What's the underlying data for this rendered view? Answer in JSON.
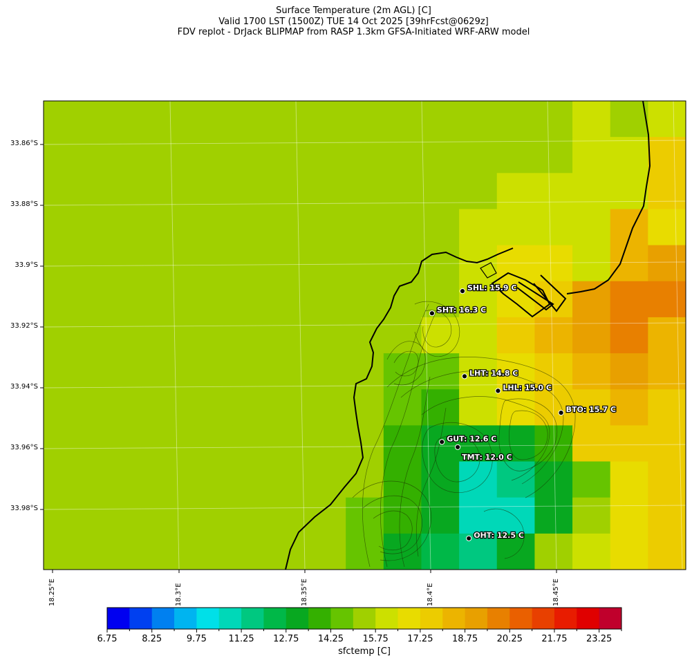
{
  "title": {
    "line1": "Surface Temperature (2m AGL) [C]",
    "line2": "Valid 1700 LST (1500Z) TUE 14 Oct 2025 [39hrFcst@0629z]",
    "line3": "FDV replot - DrJack BLIPMAP from RASP 1.3km GFSA-Initiated WRF-ARW model"
  },
  "axes": {
    "lat_ticks": [
      "33.86°S",
      "33.88°S",
      "33.9°S",
      "33.92°S",
      "33.94°S",
      "33.96°S",
      "33.98°S"
    ],
    "lon_ticks": [
      "18.25°E",
      "18.3°E",
      "18.35°E",
      "18.4°E",
      "18.45°E"
    ]
  },
  "stations": [
    {
      "id": "SHL",
      "label": "SHL: 15.9 C",
      "value": 15.9,
      "lat": -33.9082,
      "lon": 18.4127
    },
    {
      "id": "SHT",
      "label": "SHT: 16.3 C",
      "value": 16.3,
      "lat": -33.9155,
      "lon": 18.4006
    },
    {
      "id": "LHT",
      "label": "LHT: 14.8 C",
      "value": 14.8,
      "lat": -33.9362,
      "lon": 18.4135
    },
    {
      "id": "LHL",
      "label": "LHL: 15.0 C",
      "value": 15.0,
      "lat": -33.941,
      "lon": 18.4268
    },
    {
      "id": "BTO",
      "label": "BTO: 15.7 C",
      "value": 15.7,
      "lat": -33.9482,
      "lon": 18.4518
    },
    {
      "id": "GUT",
      "label": "GUT: 12.6 C",
      "value": 12.6,
      "lat": -33.9578,
      "lon": 18.4045
    },
    {
      "id": "TMT",
      "label": "TMT: 12.0 C",
      "value": 12.0,
      "lat": -33.9595,
      "lon": 18.4108
    },
    {
      "id": "OHT",
      "label": "OHT: 12.5 C",
      "value": 12.5,
      "lat": -33.9895,
      "lon": 18.4152
    }
  ],
  "colorbar": {
    "title": "sfctemp [C]",
    "labels": [
      "6.75",
      "8.25",
      "9.75",
      "11.25",
      "12.75",
      "14.25",
      "15.75",
      "17.25",
      "18.75",
      "20.25",
      "21.75",
      "23.25"
    ],
    "colors": [
      "#0000f0",
      "#0040f0",
      "#0080f0",
      "#00b4f0",
      "#00e0e8",
      "#00d8b8",
      "#00c880",
      "#00b848",
      "#08a820",
      "#34b000",
      "#66c400",
      "#a0d000",
      "#cce000",
      "#e8dc00",
      "#eccc00",
      "#ecb400",
      "#e8a000",
      "#e88000",
      "#ea6000",
      "#e84000",
      "#e81c00",
      "#e00000",
      "#c0002c"
    ]
  },
  "field": {
    "grid_cols": 17,
    "grid_rows": 13,
    "cells": [
      [
        11,
        11,
        11,
        11,
        11,
        11,
        11,
        11,
        11,
        11,
        11,
        11,
        11,
        11,
        12,
        11,
        12
      ],
      [
        11,
        11,
        11,
        11,
        11,
        11,
        11,
        11,
        11,
        11,
        11,
        11,
        11,
        11,
        12,
        12,
        14
      ],
      [
        11,
        11,
        11,
        11,
        11,
        11,
        11,
        11,
        11,
        11,
        11,
        11,
        12,
        12,
        12,
        12,
        14
      ],
      [
        11,
        11,
        11,
        11,
        11,
        11,
        11,
        11,
        11,
        11,
        11,
        12,
        12,
        12,
        12,
        15,
        13
      ],
      [
        11,
        11,
        11,
        11,
        11,
        11,
        11,
        11,
        11,
        11,
        11,
        12,
        13,
        13,
        12,
        15,
        16
      ],
      [
        11,
        11,
        11,
        11,
        11,
        11,
        11,
        11,
        11,
        11,
        11,
        12,
        13,
        14,
        16,
        17,
        17
      ],
      [
        11,
        11,
        11,
        11,
        11,
        11,
        11,
        11,
        11,
        11,
        12,
        12,
        14,
        15,
        16,
        17,
        15
      ],
      [
        11,
        11,
        11,
        11,
        11,
        11,
        11,
        11,
        11,
        10,
        10,
        12,
        13,
        14,
        15,
        16,
        15
      ],
      [
        11,
        11,
        11,
        11,
        11,
        11,
        11,
        11,
        11,
        10,
        9,
        12,
        13,
        14,
        14,
        15,
        14
      ],
      [
        11,
        11,
        11,
        11,
        11,
        11,
        11,
        11,
        11,
        9,
        8,
        8,
        8,
        9,
        14,
        14,
        14
      ],
      [
        11,
        11,
        11,
        11,
        11,
        11,
        11,
        11,
        11,
        9,
        8,
        5,
        6,
        8,
        10,
        13,
        14
      ],
      [
        11,
        11,
        11,
        11,
        11,
        11,
        11,
        11,
        10,
        9,
        8,
        5,
        5,
        8,
        11,
        13,
        14
      ],
      [
        11,
        11,
        11,
        11,
        11,
        11,
        11,
        11,
        10,
        8,
        7,
        6,
        8,
        11,
        12,
        13,
        14
      ]
    ]
  }
}
